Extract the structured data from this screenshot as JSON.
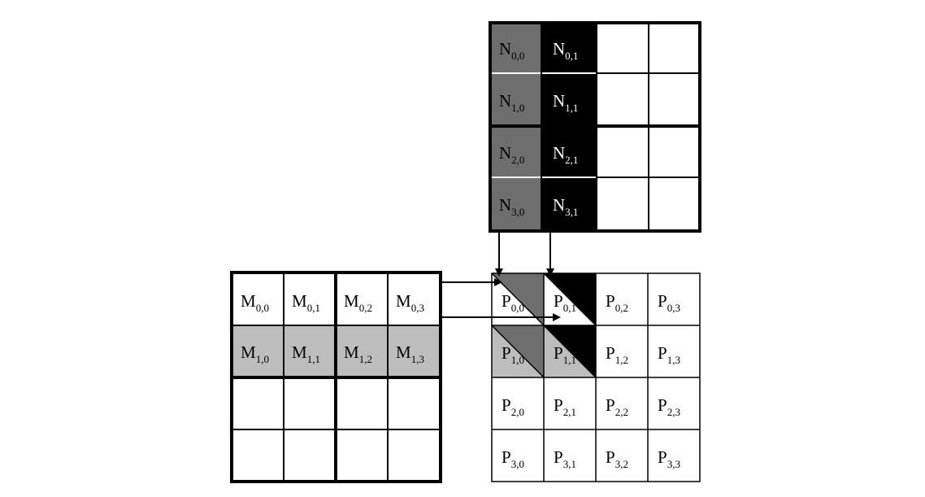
{
  "matrices": {
    "N": {
      "labels": [
        [
          "N",
          "0,0",
          "N",
          "0,1"
        ],
        [
          "N",
          "1,0",
          "N",
          "1,1"
        ],
        [
          "N",
          "2,0",
          "N",
          "2,1"
        ],
        [
          "N",
          "3,0",
          "N",
          "3,1"
        ]
      ]
    },
    "M": {
      "labels": [
        [
          "M",
          "0,0",
          "M",
          "0,1",
          "M",
          "0,2",
          "M",
          "0,3"
        ],
        [
          "M",
          "1,0",
          "M",
          "1,1",
          "M",
          "1,2",
          "M",
          "1,3"
        ]
      ]
    },
    "P": {
      "labels": [
        [
          "P",
          "0,0",
          "P",
          "0,1",
          "P",
          "0,2",
          "P",
          "0,3"
        ],
        [
          "P",
          "1,0",
          "P",
          "1,1",
          "P",
          "1,2",
          "P",
          "1,3"
        ],
        [
          "P",
          "2,0",
          "P",
          "2,1",
          "P",
          "2,2",
          "P",
          "2,3"
        ],
        [
          "P",
          "3,0",
          "P",
          "3,1",
          "P",
          "3,2",
          "P",
          "3,3"
        ]
      ]
    }
  },
  "colors": {
    "black": "#000000",
    "dark_gray": "#6e6e6e",
    "light_gray": "#bdbdbd",
    "white": "#ffffff"
  }
}
